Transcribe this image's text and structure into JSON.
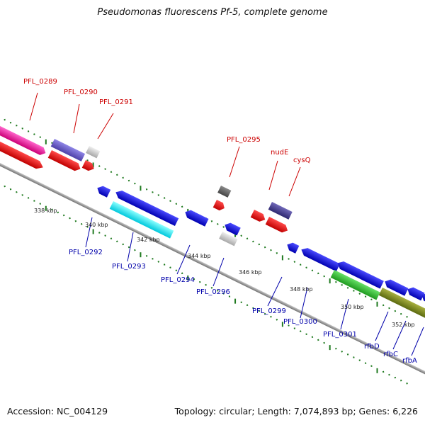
{
  "title": "Pseudomonas fluorescens Pf-5, complete genome",
  "footer": {
    "accession": "Accession: NC_004129",
    "summary": "Topology: circular; Length: 7,074,893 bp; Genes: 6,226"
  },
  "colors": {
    "backbone": "#8c8c8c",
    "label_forward": "#cc0000",
    "label_reverse": "#0000aa",
    "tick": "#1f7a1f"
  },
  "forward_strand_labels": [
    "PFL_0289",
    "PFL_0290",
    "PFL_0291",
    "PFL_0295",
    "nudE",
    "cysQ"
  ],
  "reverse_strand_labels": [
    "PFL_0292",
    "PFL_0293",
    "PFL_0294",
    "PFL_0296",
    "PFL_0299",
    "PFL_0300",
    "PFL_0301",
    "rfbD",
    "rfbC",
    "rfbA"
  ],
  "ruler_labels": [
    "338 kbp",
    "340 kbp",
    "342 kbp",
    "344 kbp",
    "346 kbp",
    "348 kbp",
    "350 kbp",
    "352 kbp"
  ]
}
